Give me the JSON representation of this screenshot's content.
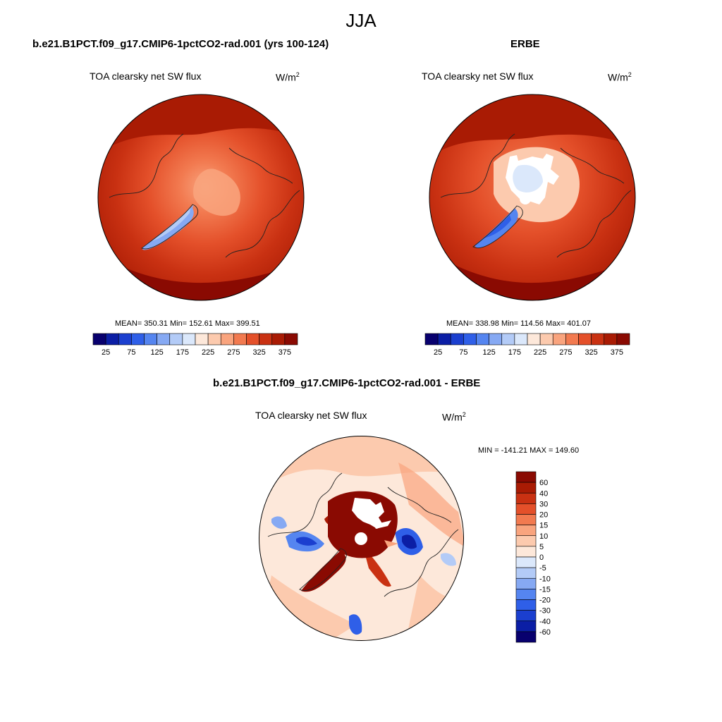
{
  "figure": {
    "season": "JJA"
  },
  "panels": {
    "model": {
      "case_title": "b.e21.B1PCT.f09_g17.CMIP6-1pctCO2-rad.001 (yrs 100-124)",
      "variable": "TOA clearsky net SW flux",
      "units_base": "W/m",
      "units_exp": "2",
      "stats": "MEAN= 350.31  Min= 152.61  Max= 399.51"
    },
    "obs": {
      "case_title": "ERBE",
      "variable": "TOA clearsky net SW flux",
      "units_base": "W/m",
      "units_exp": "2",
      "stats": "MEAN= 338.98  Min= 114.56  Max= 401.07"
    },
    "diff": {
      "case_title": "b.e21.B1PCT.f09_g17.CMIP6-1pctCO2-rad.001 - ERBE",
      "variable": "TOA clearsky net SW flux",
      "units_base": "W/m",
      "units_exp": "2",
      "stats": "MIN = -141.21 MAX = 149.60"
    }
  },
  "chart_data": [
    {
      "type": "heatmap",
      "projection": "north polar stereographic",
      "colorbar": {
        "orientation": "horizontal",
        "levels": [
          25,
          50,
          75,
          100,
          125,
          150,
          175,
          200,
          225,
          250,
          275,
          300,
          325,
          350,
          375
        ],
        "tick_labels": [
          "25",
          "75",
          "125",
          "175",
          "225",
          "275",
          "325",
          "375"
        ],
        "colors": [
          "#08006e",
          "#0b1ea5",
          "#1b3fcf",
          "#2f5fe8",
          "#5585f0",
          "#86a9f3",
          "#b3cbf7",
          "#dbe8fb",
          "#fde8da",
          "#fccaae",
          "#f9a47e",
          "#f27a50",
          "#e4502a",
          "#c93112",
          "#a91b04",
          "#8a0a02"
        ]
      },
      "stats": {
        "mean": 350.31,
        "min": 152.61,
        "max": 399.51
      }
    },
    {
      "type": "heatmap",
      "projection": "north polar stereographic",
      "colorbar": {
        "orientation": "horizontal",
        "levels": [
          25,
          50,
          75,
          100,
          125,
          150,
          175,
          200,
          225,
          250,
          275,
          300,
          325,
          350,
          375
        ],
        "tick_labels": [
          "25",
          "75",
          "125",
          "175",
          "225",
          "275",
          "325",
          "375"
        ],
        "colors": [
          "#08006e",
          "#0b1ea5",
          "#1b3fcf",
          "#2f5fe8",
          "#5585f0",
          "#86a9f3",
          "#b3cbf7",
          "#dbe8fb",
          "#fde8da",
          "#fccaae",
          "#f9a47e",
          "#f27a50",
          "#e4502a",
          "#c93112",
          "#a91b04",
          "#8a0a02"
        ]
      },
      "stats": {
        "mean": 338.98,
        "min": 114.56,
        "max": 401.07
      }
    },
    {
      "type": "heatmap",
      "projection": "north polar stereographic",
      "colorbar": {
        "orientation": "vertical",
        "levels": [
          60,
          40,
          30,
          20,
          15,
          10,
          5,
          0,
          -5,
          -10,
          -15,
          -20,
          -30,
          -40,
          -60
        ],
        "tick_labels": [
          "60",
          "40",
          "30",
          "20",
          "15",
          "10",
          "5",
          "0",
          "-5",
          "-10",
          "-15",
          "-20",
          "-30",
          "-40",
          "-60"
        ],
        "colors": [
          "#8a0a02",
          "#a91b04",
          "#c93112",
          "#e4502a",
          "#f27a50",
          "#f9a47e",
          "#fccaae",
          "#fde8da",
          "#dbe8fb",
          "#b3cbf7",
          "#86a9f3",
          "#5585f0",
          "#2f5fe8",
          "#1b3fcf",
          "#0b1ea5",
          "#08006e"
        ]
      },
      "stats": {
        "min": -141.21,
        "max": 149.6
      }
    }
  ]
}
